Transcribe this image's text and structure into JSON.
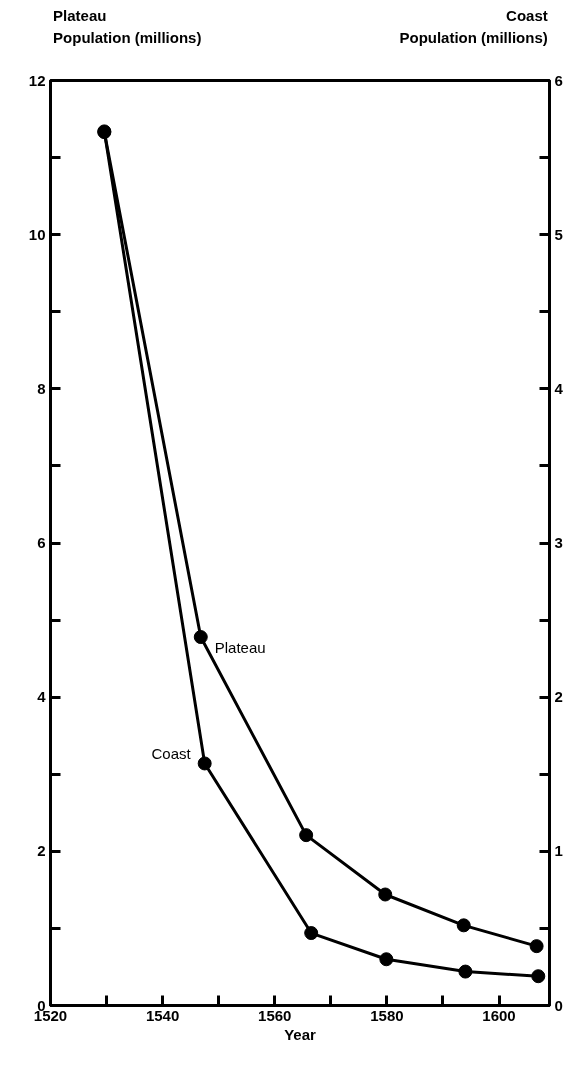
{
  "chart_data": {
    "type": "line",
    "xlabel": "Year",
    "ylabel": "Plateau\nPopulation (millions)",
    "y2label": "Coast\nPopulation (millions)",
    "xlim": [
      1520,
      1609
    ],
    "xticks": [
      1520,
      {
        "value": 1530,
        "label": null
      },
      1540,
      {
        "value": 1550,
        "label": null
      },
      1560,
      {
        "value": 1570,
        "label": null
      },
      1580,
      {
        "value": 1590,
        "label": null
      },
      1600
    ],
    "ylim": [
      0,
      12
    ],
    "yticks": [
      0,
      {
        "value": 1,
        "label": null
      },
      2,
      {
        "value": 3,
        "label": null
      },
      4,
      {
        "value": 5,
        "label": null
      },
      6,
      {
        "value": 7,
        "label": null
      },
      8,
      {
        "value": 9,
        "label": null
      },
      10,
      {
        "value": 11,
        "label": null
      },
      12
    ],
    "y2lim": [
      0,
      6
    ],
    "y2ticks": [
      0,
      {
        "value": 0.5,
        "label": null
      },
      1,
      {
        "value": 1.5,
        "label": null
      },
      2,
      {
        "value": 2.5,
        "label": null
      },
      3,
      {
        "value": 3.5,
        "label": null
      },
      4,
      {
        "value": 4.5,
        "label": null
      },
      5,
      {
        "value": 5.5,
        "label": null
      },
      6
    ],
    "marker": "circle",
    "line_style": "solid",
    "series": [
      {
        "name": "Plateau",
        "color": "#000000",
        "x": [
          1529.6,
          1546.8,
          1565.6,
          1579.7,
          1593.7,
          1606.7
        ],
        "values": [
          11.33,
          4.78,
          2.21,
          1.44,
          1.04,
          0.77
        ]
      },
      {
        "name": "Coast",
        "color": "#000000",
        "axis": "y2",
        "x": [
          1529.6,
          1547.5,
          1566.5,
          1579.9,
          1594,
          1607
        ],
        "values": [
          5.67,
          1.57,
          0.47,
          0.3,
          0.22,
          0.19
        ]
      }
    ]
  }
}
